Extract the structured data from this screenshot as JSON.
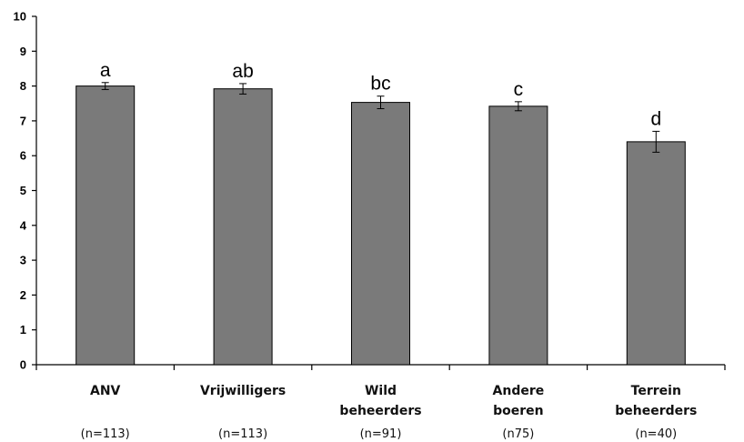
{
  "chart_data": {
    "type": "bar",
    "title": "",
    "xlabel": "",
    "ylabel": "",
    "ylim": [
      0,
      10
    ],
    "yticks": [
      0,
      1,
      2,
      3,
      4,
      5,
      6,
      7,
      8,
      9,
      10
    ],
    "grid": false,
    "bar_color": "#7a7a7a",
    "categories": [
      {
        "lines": [
          "ANV"
        ],
        "n": "(n=113)"
      },
      {
        "lines": [
          "Vrijwilligers"
        ],
        "n": "(n=113)"
      },
      {
        "lines": [
          "Wild",
          "beheerders"
        ],
        "n": "(n=91)"
      },
      {
        "lines": [
          "Andere",
          "boeren"
        ],
        "n": "(n75)"
      },
      {
        "lines": [
          "Terrein",
          "beheerders"
        ],
        "n": "(n=40)"
      }
    ],
    "values": [
      8.0,
      7.92,
      7.53,
      7.42,
      6.4
    ],
    "error": [
      0.1,
      0.15,
      0.18,
      0.13,
      0.3
    ],
    "significance_labels": [
      "a",
      "ab",
      "bc",
      "c",
      "d"
    ]
  }
}
